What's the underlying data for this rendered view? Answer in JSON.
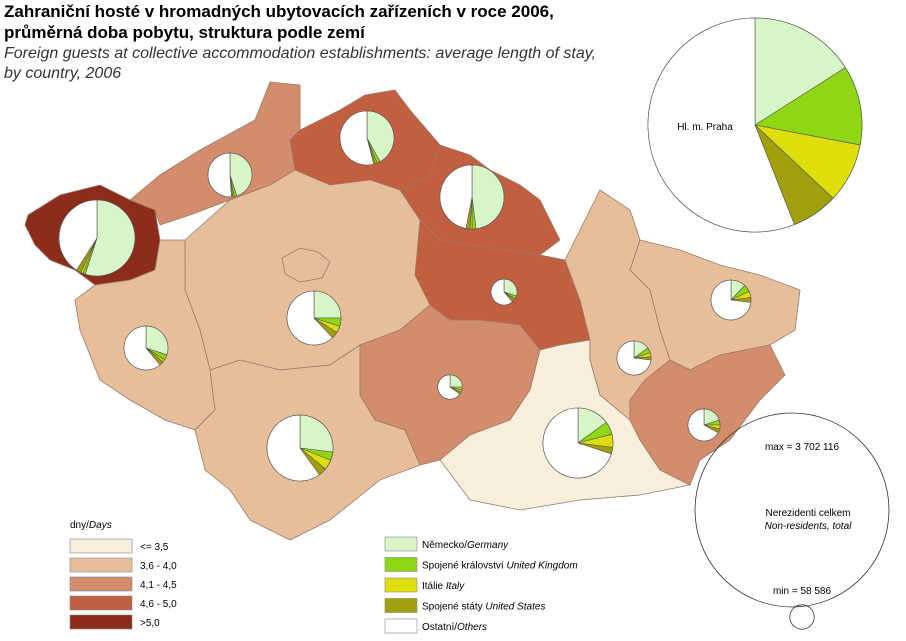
{
  "title": [
    "Zahraniční hosté v hromadných ubytovacích zařízeních v roce 2006,",
    "průměrná doba pobytu, struktura podle zemí"
  ],
  "subtitle": [
    "Foreign guests at collective accommodation establishments: average length of stay,",
    "by country, 2006"
  ],
  "class_legend": {
    "title_cz": "dny/",
    "title_en": "Days",
    "items": [
      {
        "label": "<= 3,5",
        "color": "#f7eedb"
      },
      {
        "label": "3,6 - 4,0",
        "color": "#e7be9a"
      },
      {
        "label": "4,1 - 4,5",
        "color": "#d38d6c"
      },
      {
        "label": "4,6 - 5,0",
        "color": "#c25f40"
      },
      {
        "label": ">5,0",
        "color": "#8c2d1c"
      }
    ]
  },
  "country_legend": [
    {
      "cz": "Německo/",
      "en": "Germany",
      "color": "#d8f5c8"
    },
    {
      "cz": "Spojené království ",
      "en": "United Kingdom",
      "color": "#8fd614"
    },
    {
      "cz": "Itálie ",
      "en": "Italy",
      "color": "#dede0a"
    },
    {
      "cz": "Spojené státy ",
      "en": "United States",
      "color": "#a2a00a"
    },
    {
      "cz": "Ostatní/",
      "en": "Others",
      "color": "#ffffff"
    }
  ],
  "size_legend": {
    "max": {
      "value": 3702116,
      "label": "max = 3 702 116"
    },
    "min": {
      "value": 58586,
      "label": "min = 58 586"
    },
    "label_cz": "Nerezidenti celkem",
    "label_en": "Non-residents, total"
  },
  "prague": {
    "label": "Hl. m. Praha",
    "total": 3702116,
    "shares": [
      16,
      12,
      9,
      7,
      56
    ]
  },
  "regions": [
    {
      "class": 4,
      "total": 568000,
      "shares": [
        55,
        1,
        1,
        2,
        41
      ]
    },
    {
      "class": 2,
      "total": 190000,
      "shares": [
        45,
        2,
        1,
        1,
        51
      ]
    },
    {
      "class": 3,
      "total": 287000,
      "shares": [
        42,
        2,
        1,
        1,
        54
      ]
    },
    {
      "class": 3,
      "total": 403000,
      "shares": [
        48,
        2,
        1,
        2,
        47
      ]
    },
    {
      "class": 3,
      "total": 66000,
      "shares": [
        30,
        4,
        2,
        3,
        61
      ]
    },
    {
      "class": 1,
      "total": 287000,
      "shares": [
        25,
        5,
        4,
        4,
        62
      ]
    },
    {
      "class": 1,
      "total": 190000,
      "shares": [
        30,
        4,
        2,
        3,
        61
      ]
    },
    {
      "class": 1,
      "total": 428000,
      "shares": [
        27,
        4,
        5,
        4,
        60
      ]
    },
    {
      "class": 2,
      "total": 58586,
      "shares": [
        25,
        4,
        3,
        3,
        65
      ]
    },
    {
      "class": 0,
      "total": 482000,
      "shares": [
        15,
        6,
        6,
        3,
        70
      ]
    },
    {
      "class": 1,
      "total": 114000,
      "shares": [
        15,
        5,
        4,
        3,
        73
      ]
    },
    {
      "class": 1,
      "total": 157000,
      "shares": [
        12,
        6,
        5,
        4,
        73
      ]
    },
    {
      "class": 2,
      "total": 101000,
      "shares": [
        20,
        5,
        4,
        4,
        67
      ]
    }
  ]
}
